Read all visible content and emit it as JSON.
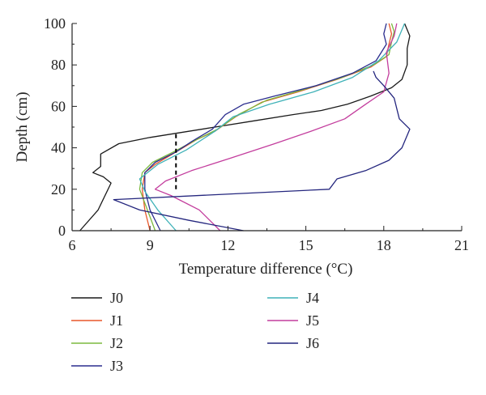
{
  "chart_data": {
    "type": "line",
    "xlabel": "Temperature difference (°C)",
    "ylabel": "Depth (cm)",
    "xlim": [
      6,
      21
    ],
    "ylim": [
      0,
      100
    ],
    "xticks": [
      6,
      9,
      12,
      15,
      18,
      21
    ],
    "yticks": [
      0,
      20,
      40,
      60,
      80,
      100
    ],
    "grid": false,
    "legend_position": "below-plot, two columns",
    "series": [
      {
        "name": "J0",
        "color": "#1a1a1a",
        "points": [
          [
            6.3,
            0
          ],
          [
            7.0,
            10
          ],
          [
            7.5,
            23
          ],
          [
            7.2,
            26
          ],
          [
            6.8,
            28
          ],
          [
            7.1,
            31
          ],
          [
            7.1,
            37
          ],
          [
            7.8,
            42
          ],
          [
            9.0,
            45
          ],
          [
            10.0,
            47
          ],
          [
            11.5,
            50
          ],
          [
            13.0,
            53
          ],
          [
            14.5,
            56
          ],
          [
            15.6,
            58
          ],
          [
            16.6,
            61
          ],
          [
            17.5,
            65
          ],
          [
            18.3,
            69
          ],
          [
            18.7,
            73
          ],
          [
            18.9,
            80
          ],
          [
            18.9,
            88
          ],
          [
            19.0,
            94
          ],
          [
            18.9,
            97
          ],
          [
            18.8,
            100
          ]
        ]
      },
      {
        "name": "J1",
        "color": "#e8572a",
        "points": [
          [
            9.0,
            0
          ],
          [
            8.8,
            10
          ],
          [
            8.7,
            20
          ],
          [
            8.8,
            28
          ],
          [
            9.2,
            32
          ],
          [
            10.0,
            38
          ],
          [
            10.8,
            44
          ],
          [
            11.5,
            48
          ],
          [
            12.3,
            55
          ],
          [
            13.3,
            62
          ],
          [
            14.7,
            67
          ],
          [
            16.2,
            73
          ],
          [
            17.5,
            79
          ],
          [
            18.1,
            84
          ],
          [
            18.2,
            90
          ],
          [
            18.3,
            95
          ],
          [
            18.2,
            100
          ]
        ]
      },
      {
        "name": "J2",
        "color": "#7cba3f",
        "points": [
          [
            9.2,
            0
          ],
          [
            8.9,
            10
          ],
          [
            8.6,
            20
          ],
          [
            8.7,
            28
          ],
          [
            9.1,
            33
          ],
          [
            9.9,
            38
          ],
          [
            10.8,
            44
          ],
          [
            11.6,
            49
          ],
          [
            12.4,
            56
          ],
          [
            13.5,
            63
          ],
          [
            14.9,
            68
          ],
          [
            16.4,
            74
          ],
          [
            17.6,
            80
          ],
          [
            18.2,
            85
          ],
          [
            18.3,
            91
          ],
          [
            18.4,
            96
          ],
          [
            18.3,
            100
          ]
        ]
      },
      {
        "name": "J3",
        "color": "#2b2d8e",
        "points": [
          [
            9.4,
            0
          ],
          [
            9.0,
            10
          ],
          [
            8.8,
            20
          ],
          [
            8.8,
            28
          ],
          [
            9.2,
            33
          ],
          [
            10.0,
            38
          ],
          [
            10.6,
            43
          ],
          [
            11.4,
            49
          ],
          [
            11.9,
            56
          ],
          [
            12.6,
            61
          ],
          [
            13.8,
            65
          ],
          [
            15.4,
            70
          ],
          [
            16.8,
            76
          ],
          [
            17.7,
            82
          ],
          [
            18.1,
            90
          ],
          [
            18.0,
            95
          ],
          [
            18.1,
            100
          ]
        ]
      },
      {
        "name": "J4",
        "color": "#3fb2b8",
        "points": [
          [
            10.0,
            0
          ],
          [
            9.3,
            10
          ],
          [
            8.8,
            19
          ],
          [
            8.6,
            25
          ],
          [
            9.3,
            32
          ],
          [
            10.4,
            39
          ],
          [
            11.5,
            48
          ],
          [
            12.2,
            55
          ],
          [
            13.6,
            61
          ],
          [
            15.3,
            67
          ],
          [
            16.8,
            74
          ],
          [
            17.8,
            82
          ],
          [
            18.5,
            91
          ],
          [
            18.8,
            100
          ]
        ]
      },
      {
        "name": "J5",
        "color": "#c33d9d",
        "points": [
          [
            11.7,
            0
          ],
          [
            10.9,
            10
          ],
          [
            9.8,
            17
          ],
          [
            9.2,
            20
          ],
          [
            9.6,
            24
          ],
          [
            10.6,
            29
          ],
          [
            12.1,
            35
          ],
          [
            13.8,
            42
          ],
          [
            15.2,
            48
          ],
          [
            16.5,
            54
          ],
          [
            17.3,
            61
          ],
          [
            18.0,
            67
          ],
          [
            18.2,
            76
          ],
          [
            18.1,
            86
          ],
          [
            18.4,
            94
          ],
          [
            18.5,
            100
          ]
        ]
      },
      {
        "name": "J6",
        "color": "#24267e",
        "points": [
          [
            12.6,
            0
          ],
          [
            10.5,
            5
          ],
          [
            8.6,
            10
          ],
          [
            7.6,
            15
          ],
          [
            15.9,
            20
          ],
          [
            16.2,
            25
          ],
          [
            17.3,
            29
          ],
          [
            18.2,
            34
          ],
          [
            18.7,
            40
          ],
          [
            19.0,
            49
          ],
          [
            18.6,
            54
          ],
          [
            18.4,
            64
          ],
          [
            18.0,
            70
          ],
          [
            17.7,
            74
          ],
          [
            17.6,
            77
          ]
        ]
      }
    ],
    "annotation": {
      "type": "dashed-vertical-line",
      "x": 10.0,
      "y_from": 20,
      "y_to": 47,
      "color": "#000000"
    }
  }
}
